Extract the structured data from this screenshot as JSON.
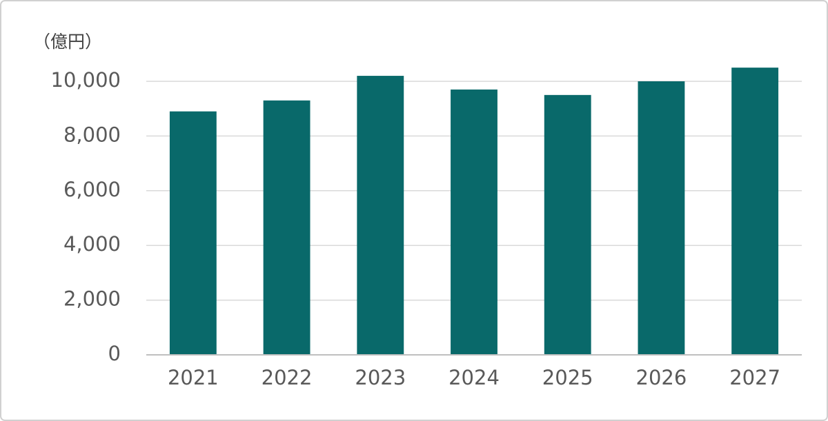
{
  "chart_data": {
    "type": "bar",
    "y_label": "（億円）",
    "categories": [
      "2021",
      "2022",
      "2023",
      "2024",
      "2025",
      "2026",
      "2027"
    ],
    "values": [
      8900,
      9300,
      10200,
      9700,
      9500,
      10000,
      10500
    ],
    "color": "#09696a",
    "ylim": [
      0,
      12000
    ],
    "yticks": [
      0,
      {
        "value": 2000,
        "label": "2,000"
      },
      {
        "value": 4000,
        "label": "4,000"
      },
      {
        "value": 6000,
        "label": "6,000"
      },
      {
        "value": 8000,
        "label": "8,000"
      },
      {
        "value": 10000,
        "label": "10,000"
      }
    ],
    "grid": true
  }
}
